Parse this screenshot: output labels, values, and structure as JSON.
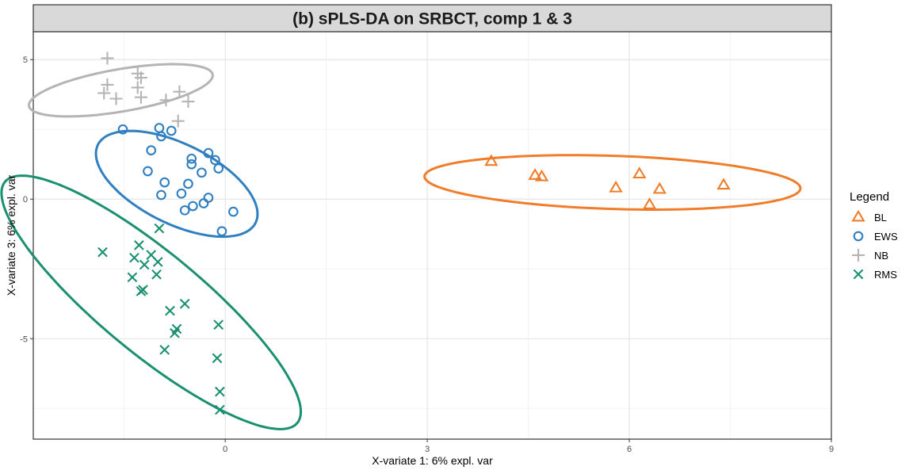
{
  "chart_data": {
    "type": "scatter",
    "title": "(b) sPLS-DA on SRBCT, comp 1 & 3",
    "xlabel": "X-variate 1: 6% expl. var",
    "ylabel": "X-variate 3: 6% expl. var",
    "xlim": [
      -2.85,
      9.0
    ],
    "ylim": [
      -8.6,
      6.0
    ],
    "x_ticks": [
      0,
      3,
      6,
      9
    ],
    "y_ticks": [
      -5,
      0,
      5
    ],
    "grid": true,
    "legend_title": "Legend",
    "legend_position": "right",
    "series": [
      {
        "name": "BL",
        "color": "#f07d2a",
        "marker": "triangle",
        "points": [
          [
            3.95,
            1.35
          ],
          [
            4.6,
            0.85
          ],
          [
            4.7,
            0.8
          ],
          [
            5.8,
            0.4
          ],
          [
            6.15,
            0.9
          ],
          [
            6.45,
            0.35
          ],
          [
            6.3,
            -0.2
          ],
          [
            7.4,
            0.5
          ]
        ],
        "ellipse": {
          "cx": 5.75,
          "cy": 0.6,
          "rx": 2.8,
          "ry": 0.95,
          "angle_deg": -4.9
        }
      },
      {
        "name": "EWS",
        "color": "#2f7fc1",
        "marker": "circle",
        "points": [
          [
            -1.52,
            2.5
          ],
          [
            -1.1,
            1.75
          ],
          [
            -0.98,
            2.55
          ],
          [
            -0.95,
            2.25
          ],
          [
            -0.8,
            2.45
          ],
          [
            -0.5,
            1.45
          ],
          [
            -0.5,
            1.25
          ],
          [
            -0.25,
            1.65
          ],
          [
            -0.15,
            1.4
          ],
          [
            -0.1,
            1.1
          ],
          [
            -0.35,
            0.95
          ],
          [
            -0.55,
            0.55
          ],
          [
            -0.9,
            0.6
          ],
          [
            -1.15,
            1.0
          ],
          [
            -0.95,
            0.15
          ],
          [
            -0.65,
            0.2
          ],
          [
            -0.6,
            -0.4
          ],
          [
            -0.48,
            -0.25
          ],
          [
            -0.32,
            -0.15
          ],
          [
            -0.25,
            0.05
          ],
          [
            -0.05,
            -1.15
          ],
          [
            0.12,
            -0.45
          ]
        ],
        "ellipse": {
          "cx": -0.72,
          "cy": 0.55,
          "rx": 2.05,
          "ry": 0.91,
          "angle_deg": -64.8
        }
      },
      {
        "name": "NB",
        "color": "#b4b4b4",
        "marker": "plus",
        "points": [
          [
            -1.75,
            5.05
          ],
          [
            -1.75,
            4.1
          ],
          [
            -1.8,
            3.8
          ],
          [
            -1.62,
            3.6
          ],
          [
            -1.3,
            4.5
          ],
          [
            -1.25,
            4.35
          ],
          [
            -1.3,
            4.0
          ],
          [
            -1.25,
            3.65
          ],
          [
            -0.88,
            3.55
          ],
          [
            -0.68,
            3.85
          ],
          [
            -0.55,
            3.5
          ],
          [
            -0.7,
            2.8
          ]
        ],
        "ellipse": {
          "cx": -1.55,
          "cy": 3.9,
          "rx": 1.5,
          "ry": 0.7,
          "angle_deg": 28
        }
      },
      {
        "name": "RMS",
        "color": "#1a9070",
        "marker": "x",
        "points": [
          [
            -1.82,
            -1.9
          ],
          [
            -1.35,
            -2.1
          ],
          [
            -1.28,
            -1.65
          ],
          [
            -1.38,
            -2.8
          ],
          [
            -1.22,
            -3.25
          ],
          [
            -1.25,
            -3.3
          ],
          [
            -1.2,
            -2.35
          ],
          [
            -1.1,
            -2.0
          ],
          [
            -1.02,
            -2.7
          ],
          [
            -1.0,
            -2.25
          ],
          [
            -0.98,
            -1.05
          ],
          [
            -0.82,
            -4.0
          ],
          [
            -0.75,
            -4.8
          ],
          [
            -0.6,
            -3.75
          ],
          [
            -0.9,
            -5.4
          ],
          [
            -0.72,
            -4.65
          ],
          [
            -0.12,
            -5.7
          ],
          [
            -0.1,
            -4.5
          ],
          [
            -0.08,
            -6.9
          ],
          [
            -0.08,
            -7.55
          ]
        ],
        "ellipse": {
          "cx": -1.1,
          "cy": -3.7,
          "rx": 4.95,
          "ry": 1.03,
          "angle_deg": -66
        }
      }
    ]
  }
}
